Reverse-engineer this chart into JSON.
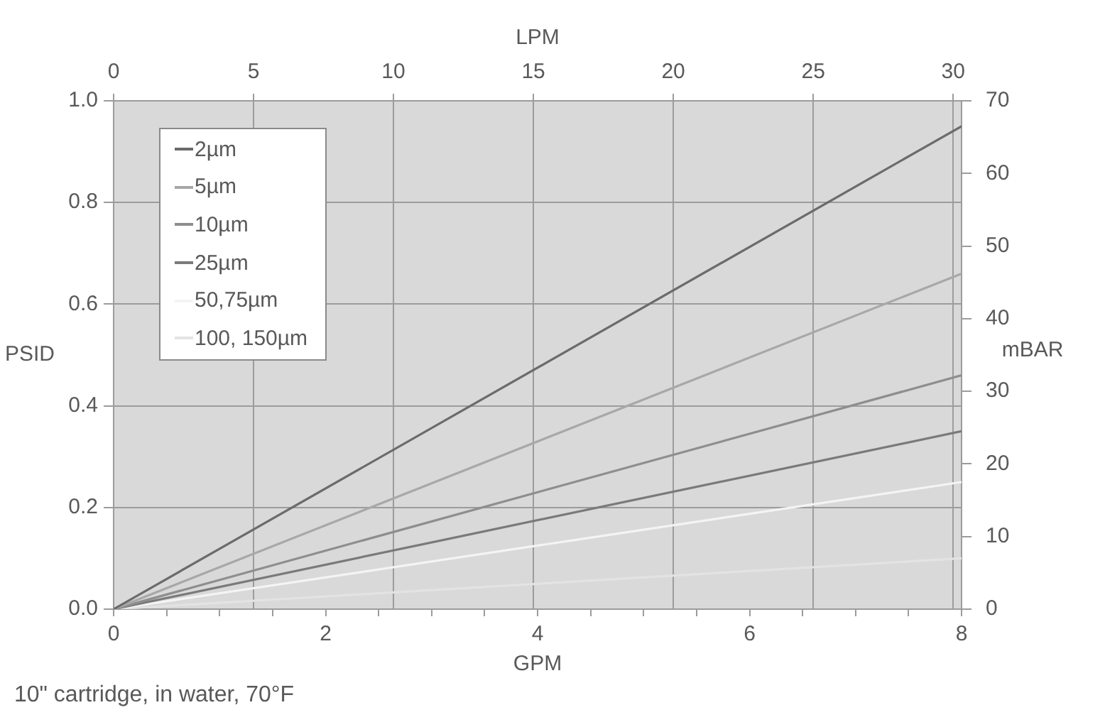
{
  "chart_data": {
    "type": "line",
    "xlabel": "GPM",
    "ylabel": "PSID",
    "y2label": "mBAR",
    "x2label": "LPM",
    "annotations": [
      "10\" cartridge, in water, 70°F"
    ],
    "xlim": [
      0,
      8
    ],
    "xticks": [
      0,
      {
        "value": 0.5,
        "label": null
      },
      {
        "value": 1,
        "label": null
      },
      {
        "value": 1.5,
        "label": null
      },
      2,
      {
        "value": 2.5,
        "label": null
      },
      {
        "value": 3,
        "label": null
      },
      {
        "value": 3.5,
        "label": null
      },
      4,
      {
        "value": 4.5,
        "label": null
      },
      {
        "value": 5,
        "label": null
      },
      {
        "value": 5.5,
        "label": null
      },
      6,
      {
        "value": 6.5,
        "label": null
      },
      {
        "value": 7,
        "label": null
      },
      {
        "value": 7.5,
        "label": null
      },
      8
    ],
    "ylim": [
      0,
      1
    ],
    "yticks": [
      {
        "value": 0,
        "label": "0.0"
      },
      0.2,
      0.4,
      0.6,
      0.8,
      {
        "value": 1,
        "label": "1.0"
      }
    ],
    "x2lim": [
      0,
      30.3
    ],
    "x2ticks": [
      0,
      5,
      10,
      15,
      20,
      25,
      30
    ],
    "y2lim": [
      0,
      70
    ],
    "y2ticks": [
      0,
      10,
      20,
      30,
      40,
      50,
      60,
      70
    ],
    "grid": true,
    "legend": "top left",
    "x": [
      0,
      8
    ],
    "series": [
      {
        "name": "2µm",
        "color": "#6b6b6b",
        "values": [
          0,
          0.95
        ]
      },
      {
        "name": "5µm",
        "color": "#a8a8a8",
        "values": [
          0,
          0.66
        ]
      },
      {
        "name": "10µm",
        "color": "#8e8e8e",
        "values": [
          0,
          0.46
        ]
      },
      {
        "name": "25µm",
        "color": "#7a7a7a",
        "values": [
          0,
          0.35
        ]
      },
      {
        "name": "50,75µm",
        "color": "#f4f4f4",
        "values": [
          0,
          0.25
        ]
      },
      {
        "name": "100, 150µm",
        "color": "#e3e3e3",
        "values": [
          0,
          0.1
        ]
      }
    ]
  }
}
